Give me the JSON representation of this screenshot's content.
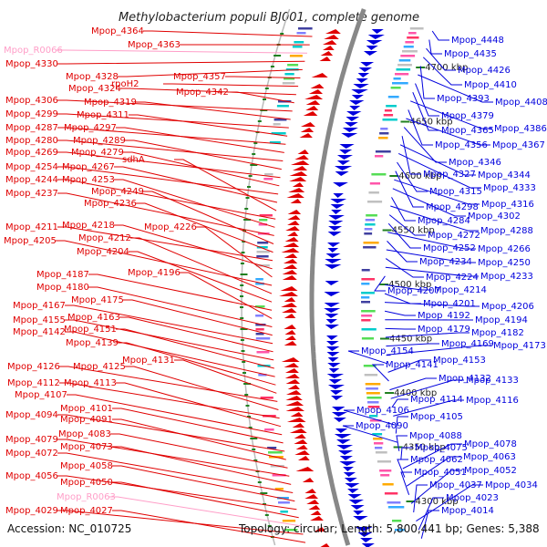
{
  "title": "Methylobacterium populi BJ001, complete genome",
  "footer": {
    "accession": "Accession: NC_010725",
    "summary": "Topology: circular; Length: 5,800,441 bp; Genes: 5,388"
  },
  "colors": {
    "forward": "#e00000",
    "reverse": "#0000dd",
    "rna": "#ff9ec8",
    "backbone": "#888888",
    "tick": "#208020"
  },
  "scale_marks": [
    "4700 kbp",
    "4650 kbp",
    "4600 kbp",
    "4550 kbp",
    "4500 kbp",
    "4450 kbp",
    "4400 kbp",
    "4350 kbp",
    "4300 kbp"
  ],
  "left_labels": [
    {
      "text": "Mpop_4364",
      "type": "gene"
    },
    {
      "text": "Mpop_4363",
      "type": "gene"
    },
    {
      "text": "Mpop_R0066",
      "type": "rna"
    },
    {
      "text": "Mpop_4330",
      "type": "gene"
    },
    {
      "text": "Mpop_4328",
      "type": "gene"
    },
    {
      "text": "Mpop_4357",
      "type": "gene"
    },
    {
      "text": "rpoH2",
      "type": "gene"
    },
    {
      "text": "Mpop_4324",
      "type": "gene"
    },
    {
      "text": "Mpop_4342",
      "type": "gene"
    },
    {
      "text": "Mpop_4306",
      "type": "gene"
    },
    {
      "text": "Mpop_4319",
      "type": "gene"
    },
    {
      "text": "Mpop_4299",
      "type": "gene"
    },
    {
      "text": "Mpop_4311",
      "type": "gene"
    },
    {
      "text": "Mpop_4287",
      "type": "gene"
    },
    {
      "text": "Mpop_4297",
      "type": "gene"
    },
    {
      "text": "Mpop_4280",
      "type": "gene"
    },
    {
      "text": "Mpop_4289",
      "type": "gene"
    },
    {
      "text": "Mpop_4269",
      "type": "gene"
    },
    {
      "text": "Mpop_4279",
      "type": "gene"
    },
    {
      "text": "Mpop_4254",
      "type": "gene"
    },
    {
      "text": "Mpop_4267",
      "type": "gene"
    },
    {
      "text": "sdhA",
      "type": "gene"
    },
    {
      "text": "Mpop_4244",
      "type": "gene"
    },
    {
      "text": "Mpop_4253",
      "type": "gene"
    },
    {
      "text": "Mpop_4237",
      "type": "gene"
    },
    {
      "text": "Mpop_4249",
      "type": "gene"
    },
    {
      "text": "Mpop_4236",
      "type": "gene"
    },
    {
      "text": "Mpop_4211",
      "type": "gene"
    },
    {
      "text": "Mpop_4218",
      "type": "gene"
    },
    {
      "text": "Mpop_4226",
      "type": "gene"
    },
    {
      "text": "Mpop_4205",
      "type": "gene"
    },
    {
      "text": "Mpop_4212",
      "type": "gene"
    },
    {
      "text": "Mpop_4204",
      "type": "gene"
    },
    {
      "text": "Mpop_4187",
      "type": "gene"
    },
    {
      "text": "Mpop_4196",
      "type": "gene"
    },
    {
      "text": "Mpop_4180",
      "type": "gene"
    },
    {
      "text": "Mpop_4175",
      "type": "gene"
    },
    {
      "text": "Mpop_4167",
      "type": "gene"
    },
    {
      "text": "Mpop_4163",
      "type": "gene"
    },
    {
      "text": "Mpop_4155",
      "type": "gene"
    },
    {
      "text": "Mpop_4151",
      "type": "gene"
    },
    {
      "text": "Mpop_4142",
      "type": "gene"
    },
    {
      "text": "Mpop_4139",
      "type": "gene"
    },
    {
      "text": "Mpop_4131",
      "type": "gene"
    },
    {
      "text": "Mpop_4126",
      "type": "gene"
    },
    {
      "text": "Mpop_4125",
      "type": "gene"
    },
    {
      "text": "Mpop_4112",
      "type": "gene"
    },
    {
      "text": "Mpop_4113",
      "type": "gene"
    },
    {
      "text": "Mpop_4107",
      "type": "gene"
    },
    {
      "text": "Mpop_4101",
      "type": "gene"
    },
    {
      "text": "Mpop_4094",
      "type": "gene"
    },
    {
      "text": "Mpop_4091",
      "type": "gene"
    },
    {
      "text": "Mpop_4083",
      "type": "gene"
    },
    {
      "text": "Mpop_4079",
      "type": "gene"
    },
    {
      "text": "Mpop_4073",
      "type": "gene"
    },
    {
      "text": "Mpop_4072",
      "type": "gene"
    },
    {
      "text": "Mpop_4058",
      "type": "gene"
    },
    {
      "text": "Mpop_4056",
      "type": "gene"
    },
    {
      "text": "Mpop_4050",
      "type": "gene"
    },
    {
      "text": "Mpop_R0063",
      "type": "rna"
    },
    {
      "text": "Mpop_4029",
      "type": "gene"
    },
    {
      "text": "Mpop_4027",
      "type": "gene"
    }
  ],
  "right_labels": [
    "Mpop_4448",
    "Mpop_4435",
    "Mpop_4426",
    "Mpop_4410",
    "Mpop_4393",
    "Mpop_4408",
    "Mpop_4379",
    "Mpop_4365",
    "Mpop_4386",
    "Mpop_4356",
    "Mpop_4367",
    "Mpop_4346",
    "Mpop_4327",
    "Mpop_4344",
    "Mpop_4333",
    "Mpop_4315",
    "Mpop_4298",
    "Mpop_4316",
    "Mpop_4302",
    "Mpop_4284",
    "Mpop_4288",
    "Mpop_4272",
    "Mpop_4252",
    "Mpop_4266",
    "Mpop_4234",
    "Mpop_4250",
    "Mpop_4224",
    "Mpop_4233",
    "Mpop_4207",
    "Mpop_4214",
    "Mpop_4201",
    "Mpop_4206",
    "Mpop_4192",
    "Mpop_4194",
    "Mpop_4179",
    "Mpop_4182",
    "Mpop_4169",
    "Mpop_4173",
    "Mpop_4154",
    "Mpop_4153",
    "Mpop_4141",
    "Mpop_4132",
    "Mpop_4133",
    "Mpop_4114",
    "Mpop_4116",
    "Mpop_4106",
    "Mpop_4105",
    "Mpop_4090",
    "Mpop_4088",
    "Mpop_4075",
    "Mpop_4078",
    "Mpop_4062",
    "Mpop_4063",
    "Mpop_4051",
    "Mpop_4052",
    "Mpop_4037",
    "Mpop_4034",
    "Mpop_4023",
    "Mpop_4014"
  ]
}
